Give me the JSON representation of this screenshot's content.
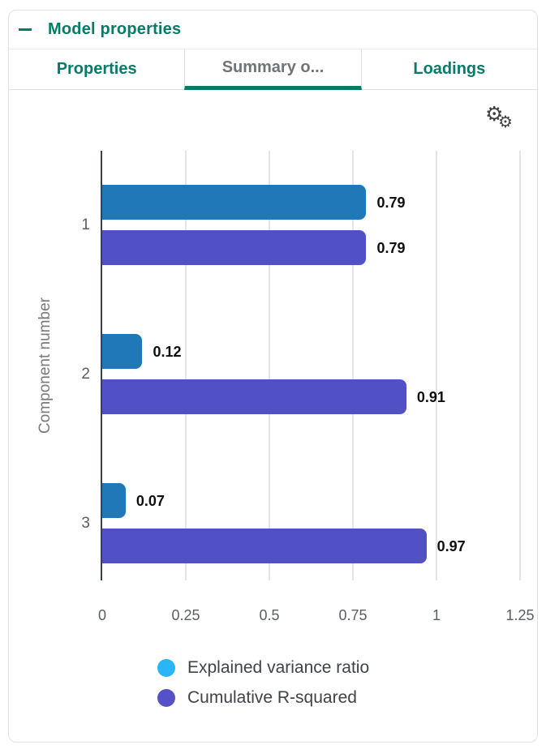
{
  "panel": {
    "title": "Model properties"
  },
  "tabs": [
    {
      "label": "Properties",
      "active": false
    },
    {
      "label": "Summary o...",
      "active": true
    },
    {
      "label": "Loadings",
      "active": false
    }
  ],
  "icons": {
    "collapse": {
      "name": "minus-icon",
      "glyph": "—"
    },
    "settings": {
      "name": "gears-icon",
      "glyph": "⚙"
    }
  },
  "colors": {
    "accent_teal": "#077a68",
    "series1_bar": "#2178b8",
    "series2_bar": "#5150c4",
    "series1_legend": "#29b5f6",
    "series2_legend": "#5452c6",
    "axis_line": "#3a4149",
    "gridline": "#e4e4e4",
    "tick_text": "#5a5e63",
    "value_text": "#101010"
  },
  "chart_data": {
    "type": "bar",
    "orientation": "horizontal",
    "title": "",
    "ylabel": "Component number",
    "xlabel": "",
    "categories": [
      "1",
      "2",
      "3"
    ],
    "series": [
      {
        "name": "Explained variance ratio",
        "values": [
          0.79,
          0.12,
          0.07
        ],
        "labels": [
          "0.79",
          "0.12",
          "0.07"
        ],
        "bar_color": "#2178b8",
        "legend_color": "#29b5f6"
      },
      {
        "name": "Cumulative R-squared",
        "values": [
          0.79,
          0.91,
          0.97
        ],
        "labels": [
          "0.79",
          "0.91",
          "0.97"
        ],
        "bar_color": "#5150c4",
        "legend_color": "#5452c6"
      }
    ],
    "x_ticks": [
      {
        "value": 0,
        "label": "0"
      },
      {
        "value": 0.25,
        "label": "0.25"
      },
      {
        "value": 0.5,
        "label": "0.5"
      },
      {
        "value": 0.75,
        "label": "0.75"
      },
      {
        "value": 1,
        "label": "1"
      },
      {
        "value": 1.25,
        "label": "1.25"
      }
    ],
    "xlim": [
      0,
      1.3
    ],
    "grid": true,
    "legend_position": "bottom"
  }
}
